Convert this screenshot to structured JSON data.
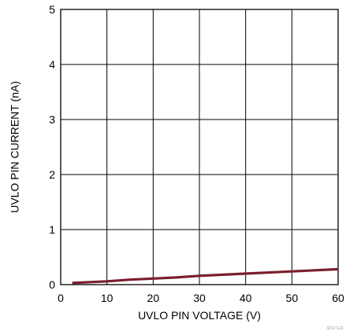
{
  "chart_data": {
    "type": "line",
    "title": "",
    "xlabel": "UVLO PIN VOLTAGE (V)",
    "ylabel": "UVLO PIN CURRENT (nA)",
    "xlim": [
      0,
      60
    ],
    "ylim": [
      0,
      5
    ],
    "x_ticks": [
      "0",
      "10",
      "20",
      "30",
      "40",
      "50",
      "60"
    ],
    "y_ticks": [
      "0",
      "1",
      "2",
      "3",
      "4",
      "5"
    ],
    "grid": true,
    "series": [
      {
        "color": "#7a1f2e",
        "x": [
          2.5,
          10,
          15,
          20,
          25,
          30,
          40,
          50,
          60
        ],
        "y": [
          0.03,
          0.06,
          0.09,
          0.11,
          0.13,
          0.16,
          0.2,
          0.24,
          0.28
        ]
      }
    ],
    "footnote": "3212 G11"
  }
}
